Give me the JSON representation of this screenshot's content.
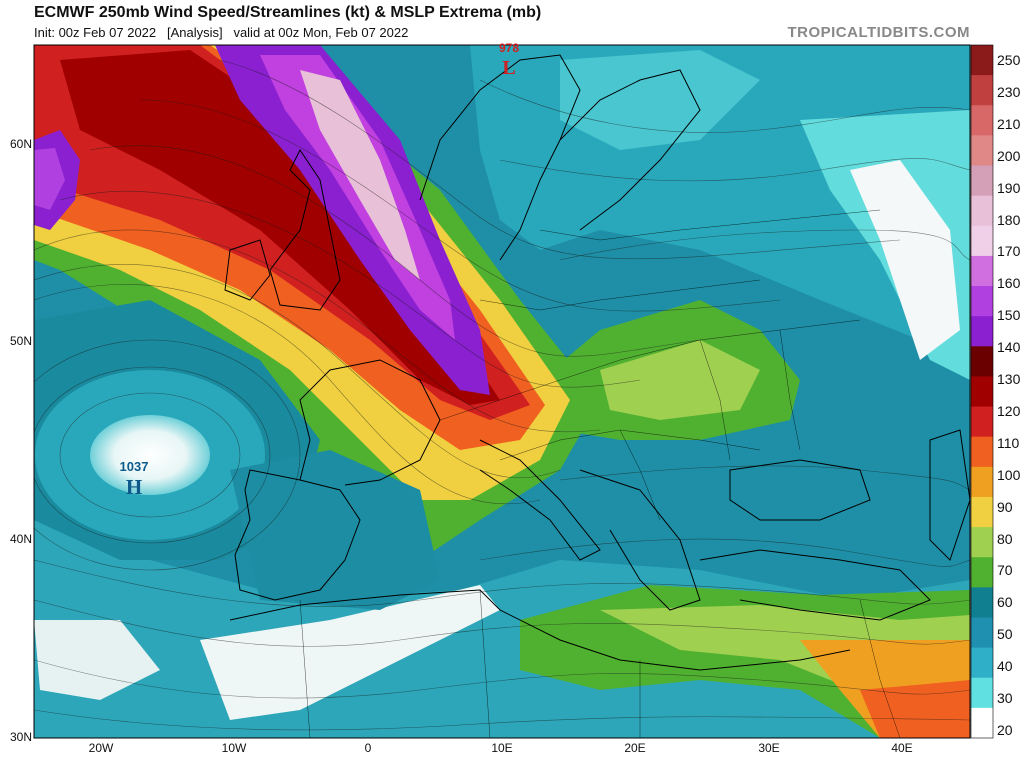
{
  "header": {
    "title": "ECMWF 250mb Wind Speed/Streamlines (kt) & MSLP Extrema (mb)",
    "subtitle": "Init: 00z Feb 07 2022   [Analysis]   valid at 00z Mon, Feb 07 2022",
    "credit": "TROPICALTIDBITS.COM"
  },
  "axes": {
    "lat_labels": [
      "60N",
      "50N",
      "40N",
      "30N"
    ],
    "lon_labels": [
      "20W",
      "10W",
      "0",
      "10E",
      "20E",
      "30E",
      "40E"
    ]
  },
  "extrema": {
    "low_value": "978",
    "low_letter": "L",
    "high_value": "1037",
    "high_letter": "H"
  },
  "colorbar": {
    "labels": [
      "250",
      "230",
      "210",
      "200",
      "190",
      "180",
      "170",
      "160",
      "150",
      "140",
      "130",
      "120",
      "110",
      "100",
      "90",
      "80",
      "70",
      "60",
      "50",
      "40",
      "30",
      "20"
    ],
    "colors": [
      "#8b1a1a",
      "#c04040",
      "#d86868",
      "#e08888",
      "#d4a0b8",
      "#e8c0d8",
      "#f0d0e8",
      "#d070e0",
      "#b040e0",
      "#8a20d0",
      "#6a0000",
      "#a00000",
      "#d02020",
      "#f06020",
      "#f0a020",
      "#f0d040",
      "#a0d050",
      "#50b030",
      "#108090",
      "#2090b0",
      "#30b0c8",
      "#60e0e0",
      "#ffffff"
    ],
    "colors_note": "ordered top to bottom"
  }
}
